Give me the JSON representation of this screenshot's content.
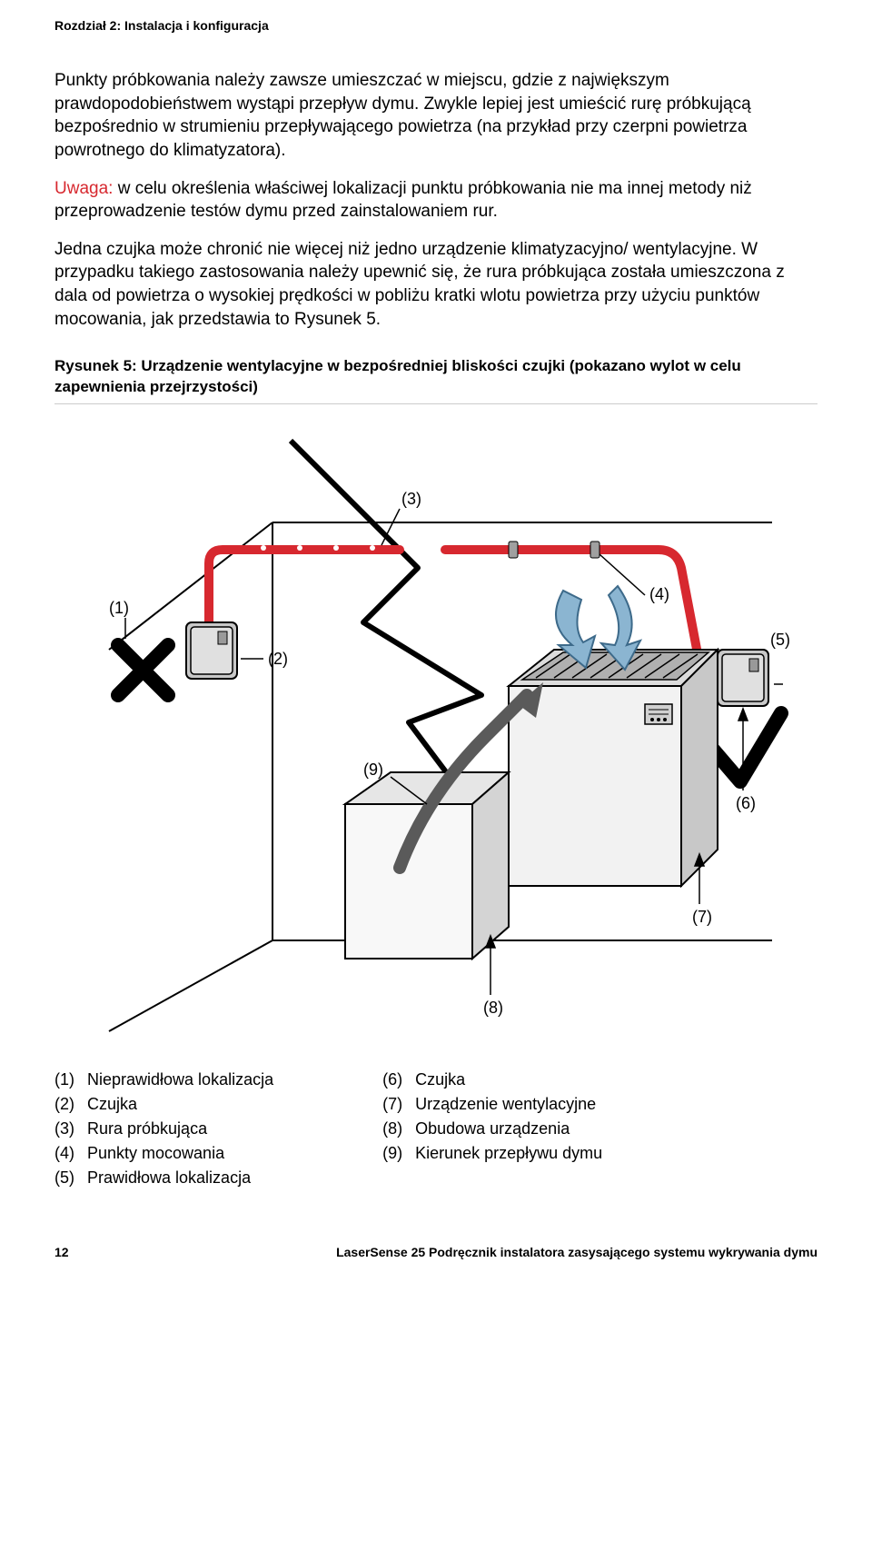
{
  "chapter_header": "Rozdział 2: Instalacja i konfiguracja",
  "para1": "Punkty próbkowania należy zawsze umieszczać w miejscu, gdzie z największym prawdopodobieństwem wystąpi przepływ dymu. Zwykle lepiej jest umieścić rurę próbkującą bezpośrednio w strumieniu przepływającego powietrza (na przykład przy czerpni powietrza powrotnego do klimatyzatora).",
  "warning_label": "Uwaga:",
  "para2": " w celu określenia właściwej lokalizacji punktu próbkowania nie ma innej metody niż przeprowadzenie testów dymu przed zainstalowaniem rur.",
  "para3": "Jedna czujka może chronić nie więcej niż jedno urządzenie klimatyzacyjno/ wentylacyjne. W przypadku takiego zastosowania należy upewnić się, że rura próbkująca została umieszczona z dala od powietrza o wysokiej prędkości w pobliżu kratki wlotu powietrza przy użyciu punktów mocowania, jak przedstawia to Rysunek 5.",
  "figure_caption": "Rysunek 5: Urządzenie wentylacyjne w bezpośredniej bliskości czujki (pokazano wylot w celu zapewnienia przejrzystości)",
  "legend_left": [
    {
      "n": "(1)",
      "t": "Nieprawidłowa lokalizacja"
    },
    {
      "n": "(2)",
      "t": "Czujka"
    },
    {
      "n": "(3)",
      "t": "Rura próbkująca"
    },
    {
      "n": "(4)",
      "t": "Punkty mocowania"
    },
    {
      "n": "(5)",
      "t": "Prawidłowa lokalizacja"
    }
  ],
  "legend_right": [
    {
      "n": "(6)",
      "t": "Czujka"
    },
    {
      "n": "(7)",
      "t": "Urządzenie wentylacyjne"
    },
    {
      "n": "(8)",
      "t": "Obudowa urządzenia"
    },
    {
      "n": "(9)",
      "t": "Kierunek przepływu dymu"
    }
  ],
  "callouts": {
    "c1": "(1)",
    "c2": "(2)",
    "c3": "(3)",
    "c4": "(4)",
    "c5": "(5)",
    "c6": "(6)",
    "c7": "(7)",
    "c8": "(8)",
    "c9": "(9)"
  },
  "footer_page": "12",
  "footer_title": "LaserSense 25 Podręcznik instalatora zasysającego systemu wykrywania dymu",
  "colors": {
    "pipe": "#d7282f",
    "black": "#000000",
    "arrow_smoke": "#5a5a5a",
    "arrow_air": "#7aa7c7",
    "box_light": "#f2f2f2",
    "box_mid": "#dcdcdc",
    "box_shade": "#c8c8c8",
    "detector": "#bdbdbd"
  }
}
